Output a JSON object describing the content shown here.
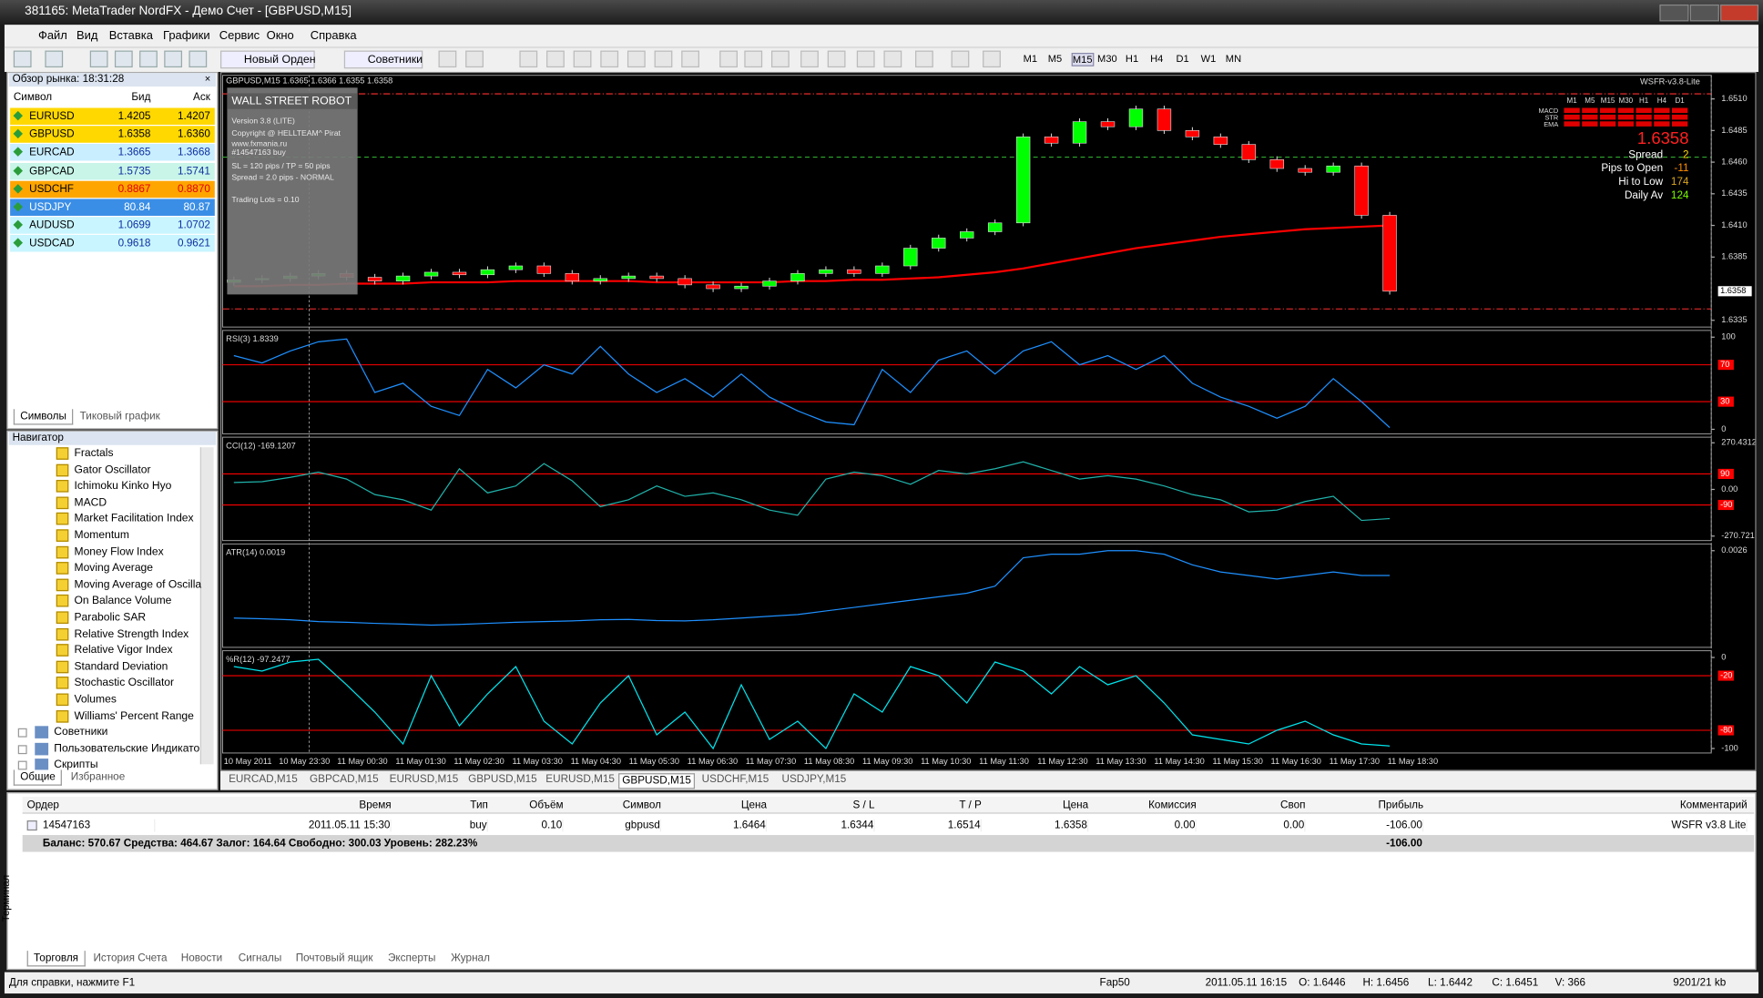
{
  "window": {
    "title": "381165: MetaTrader NordFX - Демо Счет - [GBPUSD,M15]"
  },
  "menu": [
    "Файл",
    "Вид",
    "Вставка",
    "Графики",
    "Сервис",
    "Окно",
    "Справка"
  ],
  "toolbar": {
    "new_order": "Новый Орден",
    "experts": "Советники",
    "timeframes": [
      "M1",
      "M5",
      "M15",
      "M30",
      "H1",
      "H4",
      "D1",
      "W1",
      "MN"
    ]
  },
  "market_watch": {
    "title": "Обзор рынка: 18:31:28",
    "headers": [
      "Символ",
      "Бид",
      "Аск"
    ],
    "rows": [
      [
        "EURUSD",
        "1.4205",
        "1.4207"
      ],
      [
        "GBPUSD",
        "1.6358",
        "1.6360"
      ],
      [
        "EURCAD",
        "1.3665",
        "1.3668"
      ],
      [
        "GBPCAD",
        "1.5735",
        "1.5741"
      ],
      [
        "USDCHF",
        "0.8867",
        "0.8870"
      ],
      [
        "USDJPY",
        "80.84",
        "80.87"
      ],
      [
        "AUDUSD",
        "1.0699",
        "1.0702"
      ],
      [
        "USDCAD",
        "0.9618",
        "0.9621"
      ]
    ],
    "tabs": [
      "Символы",
      "Тиковый график"
    ]
  },
  "navigator": {
    "title": "Навигатор",
    "items": [
      "Fractals",
      "Gator Oscillator",
      "Ichimoku Kinko Hyo",
      "MACD",
      "Market Facilitation Index",
      "Momentum",
      "Money Flow Index",
      "Moving Average",
      "Moving Average of Oscilla",
      "On Balance Volume",
      "Parabolic SAR",
      "Relative Strength Index",
      "Relative Vigor Index",
      "Standard Deviation",
      "Stochastic Oscillator",
      "Volumes",
      "Williams' Percent Range"
    ],
    "groups": [
      "Советники",
      "Пользовательские Индикато",
      "Скрипты"
    ],
    "tabs": [
      "Общие",
      "Избранное"
    ]
  },
  "chart": {
    "header": "GBPUSD,M15  1.6365 1.6366 1.6355 1.6358",
    "expert": "WSFR-v3.8-Lite",
    "robot_panel": [
      "WALL STREET ROBOT",
      "Version 3.8 (LITE)",
      "Copyright @ HELLTEAM^ Pirat",
      "www.fxmania.ru",
      "#14547163 buy",
      "SL = 120 pips / TP = 50 pips",
      "Spread = 2.0 pips - NORMAL",
      "Trading Lots = 0.10"
    ],
    "signals": {
      "rows": [
        "MACD",
        "STR",
        "EMA"
      ],
      "timeframes": [
        "M1",
        "M5",
        "M15",
        "M30",
        "H1",
        "H4",
        "D1"
      ]
    },
    "info": {
      "price": "1.6358",
      "rows": [
        [
          "Spread",
          "2"
        ],
        [
          "Pips to Open",
          "-11"
        ],
        [
          "Hi to Low",
          "174"
        ],
        [
          "Daily Av",
          "124"
        ]
      ]
    },
    "time_labels": [
      "10 May 2011",
      "10 May 23:30",
      "11 May 00:30",
      "11 May 01:30",
      "11 May 02:30",
      "11 May 03:30",
      "11 May 04:30",
      "11 May 05:30",
      "11 May 06:30",
      "11 May 07:30",
      "11 May 08:30",
      "11 May 09:30",
      "11 May 10:30",
      "11 May 11:30",
      "11 May 12:30",
      "11 May 13:30",
      "11 May 14:30",
      "11 May 15:30",
      "11 May 16:30",
      "11 May 17:30",
      "11 May 18:30"
    ],
    "panes": [
      {
        "type": "candlestick",
        "up_color": "#00ff00",
        "down_color": "#ff0000",
        "opens": [
          1.6365,
          1.6367,
          1.6368,
          1.637,
          1.6372,
          1.6369,
          1.6366,
          1.637,
          1.6373,
          1.6371,
          1.6375,
          1.6378,
          1.6372,
          1.6366,
          1.6368,
          1.637,
          1.6368,
          1.6363,
          1.636,
          1.6362,
          1.6366,
          1.6372,
          1.6375,
          1.6372,
          1.6378,
          1.6392,
          1.64,
          1.6405,
          1.6412,
          1.648,
          1.6475,
          1.6492,
          1.6488,
          1.6502,
          1.6485,
          1.648,
          1.6474,
          1.6462,
          1.6455,
          1.6452,
          1.6457,
          1.6418
        ],
        "closes": [
          1.6367,
          1.6368,
          1.637,
          1.6372,
          1.6369,
          1.6366,
          1.637,
          1.6373,
          1.6371,
          1.6375,
          1.6378,
          1.6372,
          1.6366,
          1.6368,
          1.637,
          1.6368,
          1.6363,
          1.636,
          1.6362,
          1.6366,
          1.6372,
          1.6375,
          1.6372,
          1.6378,
          1.6392,
          1.64,
          1.6405,
          1.6412,
          1.648,
          1.6475,
          1.6492,
          1.6488,
          1.6502,
          1.6485,
          1.648,
          1.6474,
          1.6462,
          1.6455,
          1.6452,
          1.6457,
          1.6418,
          1.6358
        ],
        "ma": {
          "color": "#ff0000",
          "values": [
            1.6362,
            1.6362,
            1.6363,
            1.6363,
            1.6364,
            1.6364,
            1.6364,
            1.6365,
            1.6365,
            1.6365,
            1.6366,
            1.6366,
            1.6366,
            1.6366,
            1.6366,
            1.6365,
            1.6365,
            1.6365,
            1.6365,
            1.6365,
            1.6366,
            1.6366,
            1.6367,
            1.6367,
            1.6368,
            1.6369,
            1.6371,
            1.6373,
            1.6376,
            1.638,
            1.6384,
            1.6388,
            1.6392,
            1.6395,
            1.6398,
            1.6401,
            1.6403,
            1.6405,
            1.6407,
            1.6408,
            1.6409,
            1.641
          ]
        },
        "ylim": [
          1.6335,
          1.651
        ],
        "yticks": [
          {
            "value": 1.651,
            "label": "1.6510"
          },
          1.6485,
          {
            "value": 1.646,
            "label": "1.6460"
          },
          1.6435,
          {
            "value": 1.641,
            "label": "1.6410"
          },
          1.6385,
          1.6335
        ]
      },
      {
        "type": "line",
        "label": "RSI(3) 1.8339",
        "color": "#1e90ff",
        "level_color": "#ff0000",
        "ylim": [
          0,
          100
        ],
        "yticks": [
          100,
          0
        ],
        "levels": [
          70,
          30
        ],
        "values": [
          80,
          72,
          85,
          95,
          98,
          40,
          50,
          25,
          15,
          65,
          45,
          70,
          60,
          90,
          60,
          40,
          55,
          35,
          60,
          35,
          20,
          8,
          5,
          65,
          40,
          75,
          85,
          60,
          85,
          95,
          70,
          80,
          65,
          80,
          50,
          35,
          25,
          12,
          25,
          55,
          30,
          1.8339
        ]
      },
      {
        "type": "line",
        "label": "CCI(12) -169.1207",
        "color": "#20b2aa",
        "level_color": "#ff0000",
        "ylim": [
          -270.721,
          270.4312
        ],
        "yticks": [
          270.4312,
          {
            "value": 0,
            "label": "0.00"
          },
          -270.721
        ],
        "levels": [
          90,
          -90
        ],
        "values": [
          40,
          45,
          70,
          100,
          60,
          -30,
          -60,
          -120,
          120,
          -20,
          20,
          150,
          50,
          -100,
          -60,
          20,
          -40,
          -20,
          -60,
          -120,
          -150,
          60,
          100,
          80,
          30,
          110,
          90,
          120,
          160,
          110,
          60,
          80,
          60,
          20,
          -30,
          -60,
          -130,
          -120,
          -70,
          -40,
          -180,
          -169.1207
        ]
      },
      {
        "type": "line",
        "label": "ATR(14) 0.0019",
        "color": "#1e90ff",
        "ylim": [
          0,
          0.0026
        ],
        "yticks": [
          0.0026
        ],
        "values": [
          0.0007,
          0.00068,
          0.00065,
          0.0006,
          0.00058,
          0.00055,
          0.00053,
          0.0005,
          0.00052,
          0.00055,
          0.00058,
          0.0006,
          0.00062,
          0.00065,
          0.00066,
          0.00063,
          0.00062,
          0.00065,
          0.0007,
          0.00075,
          0.0008,
          0.0009,
          0.001,
          0.0011,
          0.0012,
          0.0013,
          0.0014,
          0.0016,
          0.0024,
          0.0025,
          0.0025,
          0.0026,
          0.0026,
          0.0025,
          0.0022,
          0.002,
          0.0019,
          0.0018,
          0.0019,
          0.002,
          0.0019,
          0.0019
        ]
      },
      {
        "type": "line",
        "label": "%R(12) -97.2477",
        "color": "#00e5ee",
        "level_color": "#ff0000",
        "ylim": [
          -100,
          0
        ],
        "yticks": [
          0,
          -100
        ],
        "levels": [
          -20,
          -80
        ],
        "values": [
          -10,
          -15,
          -5,
          -2,
          -30,
          -60,
          -95,
          -20,
          -75,
          -40,
          -10,
          -70,
          -95,
          -50,
          -20,
          -85,
          -60,
          -100,
          -30,
          -90,
          -70,
          -100,
          -40,
          -60,
          -10,
          -20,
          -50,
          -5,
          -15,
          -40,
          -10,
          -30,
          -20,
          -50,
          -85,
          -90,
          -95,
          -80,
          -70,
          -85,
          -95,
          -97.2477
        ]
      }
    ]
  },
  "chart_tabs": [
    "EURCAD,M15",
    "GBPCAD,M15",
    "EURUSD,M15",
    "GBPUSD,M15",
    "EURUSD,M15",
    "GBPUSD,M15",
    "USDCHF,M15",
    "USDJPY,M15"
  ],
  "terminal": {
    "headers": [
      "Ордер",
      "Время",
      "Тип",
      "Объём",
      "Символ",
      "Цена",
      "S / L",
      "T / P",
      "Цена",
      "Комиссия",
      "Своп",
      "Прибыль",
      "Комментарий"
    ],
    "position": {
      "order": "14547163",
      "time": "2011.05.11 15:30",
      "type": "buy",
      "volume": "0.10",
      "symbol": "gbpusd",
      "open_price": "1.6464",
      "sl": "1.6344",
      "tp": "1.6514",
      "price": "1.6358",
      "commission": "0.00",
      "swap": "0.00",
      "profit": "-106.00",
      "comment": "WSFR v3.8 Lite"
    },
    "balance": "Баланс: 570.67  Средства: 464.67  Залог: 164.64  Свободно: 300.03  Уровень: 282.23%",
    "balance_profit": "-106.00",
    "tabs": [
      "Торговля",
      "История Счета",
      "Новости",
      "Сигналы",
      "Почтовый ящик",
      "Эксперты",
      "Журнал"
    ],
    "side_label": "Терминал"
  },
  "status": {
    "help": "Для справки, нажмите F1",
    "profile": "Fap50",
    "time": "2011.05.11 16:15",
    "open": "O: 1.6446",
    "high": "H: 1.6456",
    "low": "L: 1.6442",
    "close": "C: 1.6451",
    "volume": "V: 366",
    "traffic": "9201/21 kb"
  }
}
